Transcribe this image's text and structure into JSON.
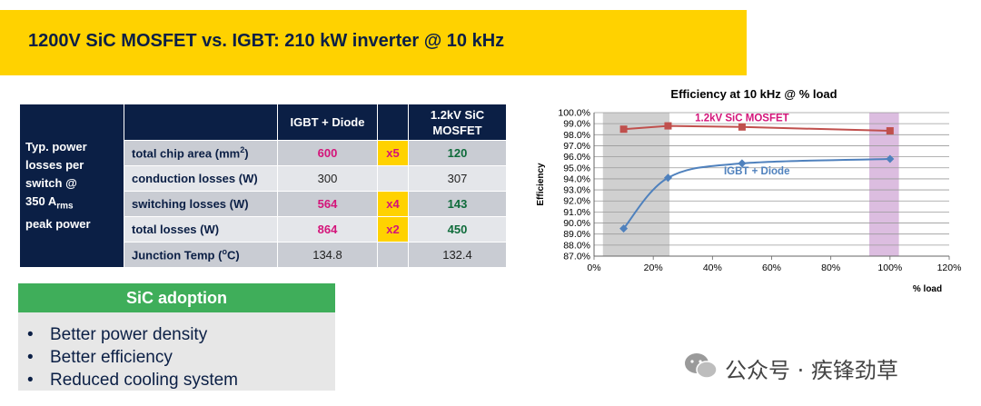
{
  "title": "1200V SiC MOSFET vs. IGBT: 210 kW inverter @ 10 kHz",
  "table": {
    "side_label_lines": [
      "Typ. power",
      "losses per",
      "switch @"
    ],
    "side_current_number": "350 A",
    "side_current_sub": "rms",
    "side_last_line": "peak power",
    "col_igbt": "IGBT + Diode",
    "col_sic_line1": "1.2kV SiC",
    "col_sic_line2": "MOSFET",
    "rows": [
      {
        "label": "total chip area (mm",
        "label_sup": "2",
        "label_end": ")",
        "igbt": "600",
        "mult": "x5",
        "sic": "120"
      },
      {
        "label": "conduction losses (W)",
        "igbt": "300",
        "mult": "",
        "sic": "307"
      },
      {
        "label": "switching losses (W)",
        "igbt": "564",
        "mult": "x4",
        "sic": "143"
      },
      {
        "label": "total losses (W)",
        "igbt": "864",
        "mult": "x2",
        "sic": "450"
      },
      {
        "label": "Junction Temp (",
        "label_sup": "o",
        "label_end": "C)",
        "igbt": "134.8",
        "mult": "",
        "sic": "132.4"
      }
    ]
  },
  "adoption": {
    "title": "SiC adoption",
    "bullet_char": "•",
    "items": [
      "Better power density",
      "Better efficiency",
      "Reduced cooling system"
    ]
  },
  "watermark": "公众号 · 疾锋劲草",
  "colors": {
    "navy": "#0b1f45",
    "yellow": "#ffd200",
    "green_bar": "#3fae5a",
    "pink": "#d4147a",
    "sic_line": "#c0504d",
    "igbt_line": "#4f81bd"
  },
  "chart_data": {
    "type": "line",
    "title": "Efficiency at 10 kHz @ % load",
    "xlabel": "% load",
    "ylabel": "Efficiency",
    "xlim": [
      0,
      120
    ],
    "ylim": [
      87.0,
      100.0
    ],
    "x_ticks": [
      "0%",
      "20%",
      "40%",
      "60%",
      "80%",
      "100%",
      "120%"
    ],
    "y_ticks": [
      "87.0%",
      "88.0%",
      "89.0%",
      "90.0%",
      "91.0%",
      "92.0%",
      "93.0%",
      "94.0%",
      "95.0%",
      "96.0%",
      "97.0%",
      "98.0%",
      "99.0%",
      "100.0%"
    ],
    "grid": true,
    "highlight_regions": [
      {
        "x": [
          3,
          25.5
        ],
        "color": "#d0d0d0"
      },
      {
        "x": [
          93,
          103
        ],
        "color": "#dcbde0"
      }
    ],
    "series": [
      {
        "name": "1.2kV SiC MOSFET",
        "x": [
          10,
          25,
          50,
          100
        ],
        "y": [
          98.5,
          98.8,
          98.7,
          98.35
        ],
        "color": "#c0504d",
        "marker": "square",
        "smooth": false
      },
      {
        "name": "IGBT + Diode",
        "x": [
          10,
          25,
          50,
          100
        ],
        "y": [
          89.5,
          94.1,
          95.4,
          95.8
        ],
        "color": "#4f81bd",
        "marker": "diamond",
        "smooth": true
      }
    ]
  }
}
